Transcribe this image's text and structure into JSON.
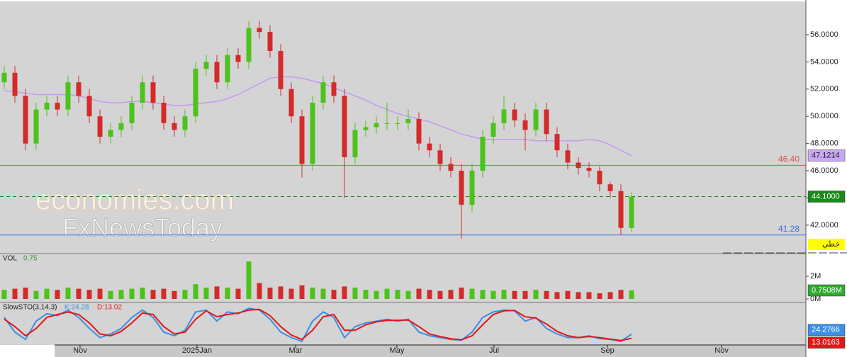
{
  "chart_data": {
    "type": "candlestick",
    "x": [
      0,
      1,
      2,
      3,
      4,
      5,
      6,
      7,
      8,
      9,
      10,
      11,
      12,
      13,
      14,
      15,
      16,
      17,
      18,
      19,
      20,
      21,
      22,
      23,
      24,
      25,
      26,
      27,
      28,
      29,
      30,
      31,
      32,
      33,
      34,
      35,
      36,
      37,
      38,
      39,
      40,
      41,
      42,
      43,
      44,
      45,
      46,
      47,
      48,
      49,
      50,
      51,
      52,
      53,
      54,
      55,
      56,
      57,
      58,
      59
    ],
    "open": [
      52.5,
      53.2,
      51.5,
      48,
      50.5,
      51,
      50.5,
      52.5,
      51.5,
      50,
      48.5,
      49,
      49.5,
      51,
      52.5,
      51,
      49.5,
      49,
      50,
      53.5,
      54,
      52.5,
      54.5,
      54,
      56.5,
      56.2,
      54.8,
      52,
      50,
      46.5,
      51,
      52.5,
      51.5,
      47,
      49,
      49.2,
      49.5,
      49.5,
      49.5,
      49.8,
      48,
      47.5,
      46.5,
      46,
      43.5,
      46,
      48.5,
      49.5,
      50.5,
      49.7,
      49,
      50.5,
      48.7,
      47.5,
      46.6,
      46.2,
      46,
      45,
      44.5,
      41.8
    ],
    "high": [
      53.7,
      53.7,
      52.0,
      51.0,
      51.5,
      51.5,
      53.0,
      53.0,
      52.0,
      50.5,
      49.5,
      50.0,
      51.5,
      53.0,
      53.0,
      51.5,
      50.0,
      50.5,
      54.0,
      54.5,
      54.5,
      55.0,
      55.0,
      57.0,
      57.0,
      56.7,
      55.3,
      52.5,
      50.5,
      51.5,
      53.0,
      53.0,
      52.0,
      49.5,
      49.7,
      50.0,
      51.0,
      50.0,
      50.5,
      50.3,
      48.5,
      48.0,
      47.0,
      46.5,
      46.5,
      49.0,
      50.0,
      51.5,
      51.0,
      50.2,
      51.0,
      51.0,
      49.2,
      48.0,
      47.0,
      46.6,
      46.3,
      45.2,
      45.0,
      44.4
    ],
    "low": [
      52.0,
      51.0,
      47.5,
      47.5,
      50.0,
      50.0,
      50.0,
      51.0,
      49.5,
      48.0,
      48.0,
      48.5,
      49.0,
      50.5,
      50.5,
      49.0,
      48.5,
      48.5,
      49.5,
      53.0,
      52.0,
      52.0,
      53.5,
      53.5,
      55.7,
      54.3,
      51.5,
      49.5,
      45.5,
      46.0,
      50.5,
      51.0,
      44.0,
      46.5,
      48.5,
      48.7,
      49.0,
      49.0,
      49.0,
      47.5,
      47.0,
      46.0,
      45.5,
      41.0,
      43.0,
      45.5,
      48.0,
      49.0,
      49.2,
      47.5,
      48.5,
      48.2,
      47.0,
      46.1,
      45.7,
      45.5,
      44.5,
      44.0,
      41.3,
      41.5
    ],
    "close": [
      53.2,
      51.5,
      48,
      50.5,
      51,
      50.5,
      52.5,
      51.5,
      50,
      48.5,
      49,
      49.5,
      51,
      52.5,
      51,
      49.5,
      49,
      50,
      53.5,
      54,
      52.5,
      54.5,
      54,
      56.5,
      56.2,
      54.8,
      52,
      50,
      46.5,
      51,
      52.5,
      51.5,
      47,
      49,
      49.2,
      49.5,
      49.5,
      49.5,
      49.8,
      48,
      47.5,
      46.5,
      46,
      43.5,
      46,
      48.5,
      49.5,
      50.5,
      49.7,
      49,
      50.5,
      48.7,
      47.5,
      46.6,
      46.2,
      46,
      45,
      44.5,
      41.8,
      44.1
    ],
    "up_color": "#4cc21a",
    "down_color": "#d42a2a",
    "xlim": [
      -0.4,
      75.4
    ],
    "xticks": [
      {
        "value": 7.13,
        "label": "Nov"
      },
      {
        "value": 18.13,
        "label": "2025Jan"
      },
      {
        "value": 27.4,
        "label": "Mar"
      },
      {
        "value": 36.93,
        "label": "May"
      },
      {
        "value": 46.07,
        "label": "Jul"
      },
      {
        "value": 56.73,
        "label": "Sep"
      },
      {
        "value": 67.47,
        "label": "Nov"
      }
    ],
    "ylim": [
      39.91,
      58.55
    ],
    "yticks": [
      {
        "value": 42,
        "label": "42.0000"
      },
      {
        "value": 44,
        "label": "44.0000"
      },
      {
        "value": 46,
        "label": "46.0000"
      },
      {
        "value": 48,
        "label": "48.0000"
      },
      {
        "value": 50,
        "label": "50.0000"
      },
      {
        "value": 52,
        "label": "52.0000"
      },
      {
        "value": 54,
        "label": "54.0000"
      },
      {
        "value": 56,
        "label": "56.0000"
      }
    ],
    "lines": [
      {
        "value": {
          "value": 46.4,
          "label": "46.40"
        },
        "color": "#e05050"
      },
      {
        "value": 41.28,
        "color": "#3a6fe0"
      }
    ],
    "last": {
      "value": 44.1,
      "label": "44.1000"
    },
    "last_color": "#1a8a1a",
    "ma": {
      "color": "#c49af0",
      "badge": {
        "value": 47.1214,
        "label": "47.1214"
      },
      "values": [
        51.9,
        51.8,
        51.7,
        51.6,
        51.6,
        51.6,
        51.6,
        51.5,
        51.3,
        51.1,
        51.0,
        51.0,
        51.1,
        51.1,
        51.0,
        50.9,
        50.8,
        50.8,
        50.9,
        51.0,
        51.1,
        51.3,
        51.6,
        52.0,
        52.4,
        52.8,
        52.9,
        52.9,
        52.8,
        52.6,
        52.4,
        52.1,
        51.8,
        51.5,
        51.2,
        50.8,
        50.5,
        50.2,
        50.0,
        49.8,
        49.6,
        49.3,
        49.0,
        48.7,
        48.5,
        48.3,
        48.3,
        48.3,
        48.3,
        48.3,
        48.2,
        48.2,
        48.2,
        48.2,
        48.2,
        48.3,
        48.2,
        47.9,
        47.5,
        47.1
      ]
    },
    "tag": "خطي",
    "watermark": [
      "economies.com",
      "FxNewsToday"
    ],
    "volume": {
      "title": "VOL",
      "value_label": 0.75,
      "values": [
        0.8,
        0.9,
        1.0,
        0.7,
        0.9,
        0.8,
        1.0,
        0.9,
        0.8,
        0.9,
        0.7,
        0.8,
        0.9,
        1.0,
        0.8,
        0.9,
        0.7,
        0.8,
        1.3,
        1.0,
        1.1,
        1.0,
        0.9,
        3.3,
        1.4,
        1.0,
        1.1,
        0.9,
        1.2,
        1.0,
        0.9,
        0.8,
        1.1,
        1.0,
        0.8,
        0.7,
        0.9,
        0.8,
        0.7,
        0.9,
        0.8,
        0.7,
        0.8,
        1.0,
        0.9,
        0.8,
        0.7,
        0.8,
        0.7,
        0.7,
        0.8,
        0.7,
        0.6,
        0.7,
        0.6,
        0.6,
        0.5,
        0.6,
        0.8,
        0.7508
      ],
      "ylim": [
        -0.3125,
        3.875
      ],
      "yticks": [
        {
          "value": 0,
          "label": "0M"
        },
        {
          "value": 2,
          "label": "2M"
        }
      ],
      "badge": {
        "value": 0.7508,
        "label": "0.7508M"
      }
    },
    "stochastic": {
      "title": "SlowSTO(3,14,3)",
      "k_label": "K:24.28",
      "d_label": "D:13.02",
      "ylim": [
        -5,
        105
      ],
      "k": {
        "color": "#3b8fe6",
        "badge": 24.2766,
        "values": [
          70,
          30,
          10,
          60,
          80,
          75,
          90,
          70,
          40,
          15,
          25,
          40,
          70,
          90,
          70,
          30,
          20,
          35,
          85,
          90,
          60,
          85,
          80,
          95,
          90,
          65,
          30,
          15,
          5,
          60,
          85,
          70,
          15,
          45,
          55,
          60,
          65,
          60,
          65,
          30,
          20,
          15,
          10,
          8,
          30,
          70,
          85,
          90,
          88,
          60,
          70,
          40,
          25,
          15,
          15,
          20,
          12,
          10,
          5,
          24.28
        ]
      },
      "d": {
        "color": "#e01818",
        "badge": 13.0163,
        "values": [
          65,
          45,
          20,
          40,
          70,
          78,
          85,
          78,
          55,
          25,
          20,
          32,
          55,
          82,
          78,
          45,
          25,
          30,
          65,
          88,
          72,
          78,
          82,
          90,
          92,
          75,
          45,
          22,
          10,
          35,
          72,
          78,
          35,
          35,
          50,
          58,
          62,
          62,
          63,
          45,
          25,
          18,
          12,
          9,
          20,
          50,
          78,
          88,
          89,
          72,
          68,
          52,
          32,
          20,
          15,
          18,
          15,
          11,
          7,
          13.02
        ]
      }
    }
  }
}
